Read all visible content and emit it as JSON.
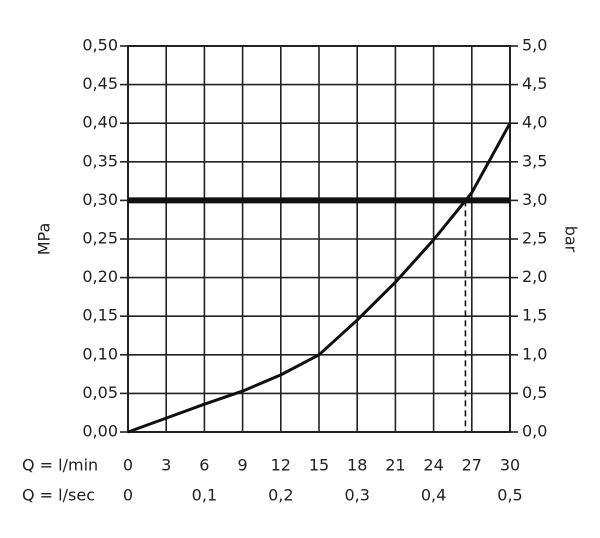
{
  "chart_data": {
    "type": "line",
    "ylabel": "MPa",
    "y2label": "bar",
    "xlabel": "Q = l/min",
    "x2label": "Q = l/sec",
    "x": [
      0,
      3,
      6,
      9,
      12,
      15,
      18,
      21,
      24,
      27,
      30
    ],
    "values": [
      0,
      0.018,
      0.036,
      0.053,
      0.074,
      0.1,
      0.145,
      0.194,
      0.249,
      0.31,
      0.4
    ],
    "color": "#111111",
    "threshold": 0.3,
    "marker_x": 26.5,
    "xlim": [
      0,
      30
    ],
    "xticks": [
      0,
      3,
      6,
      9,
      12,
      15,
      18,
      21,
      24,
      27,
      30
    ],
    "x2lim": [
      0,
      0.5
    ],
    "x2ticks": [
      0,
      {
        "value": 0.1,
        "label": "0,1"
      },
      {
        "value": 0.2,
        "label": "0,2"
      },
      {
        "value": 0.3,
        "label": "0,3"
      },
      {
        "value": 0.4,
        "label": "0,4"
      },
      {
        "value": 0.5,
        "label": "0,5"
      }
    ],
    "ylim": [
      0,
      0.5
    ],
    "yticks": [
      {
        "value": 0,
        "label": "0,00"
      },
      {
        "value": 0.05,
        "label": "0,05"
      },
      {
        "value": 0.1,
        "label": "0,10"
      },
      {
        "value": 0.15,
        "label": "0,15"
      },
      {
        "value": 0.2,
        "label": "0,20"
      },
      {
        "value": 0.25,
        "label": "0,25"
      },
      {
        "value": 0.3,
        "label": "0,30"
      },
      {
        "value": 0.35,
        "label": "0,35"
      },
      {
        "value": 0.4,
        "label": "0,40"
      },
      {
        "value": 0.45,
        "label": "0,45"
      },
      {
        "value": 0.5,
        "label": "0,50"
      }
    ],
    "y2lim": [
      0,
      5
    ],
    "y2ticks": [
      {
        "value": 0,
        "label": "0,0"
      },
      {
        "value": 0.5,
        "label": "0,5"
      },
      {
        "value": 1,
        "label": "1,0"
      },
      {
        "value": 1.5,
        "label": "1,5"
      },
      {
        "value": 2,
        "label": "2,0"
      },
      {
        "value": 2.5,
        "label": "2,5"
      },
      {
        "value": 3,
        "label": "3,0"
      },
      {
        "value": 3.5,
        "label": "3,5"
      },
      {
        "value": 4,
        "label": "4,0"
      },
      {
        "value": 4.5,
        "label": "4,5"
      },
      {
        "value": 5,
        "label": "5,0"
      }
    ],
    "grid": true
  }
}
